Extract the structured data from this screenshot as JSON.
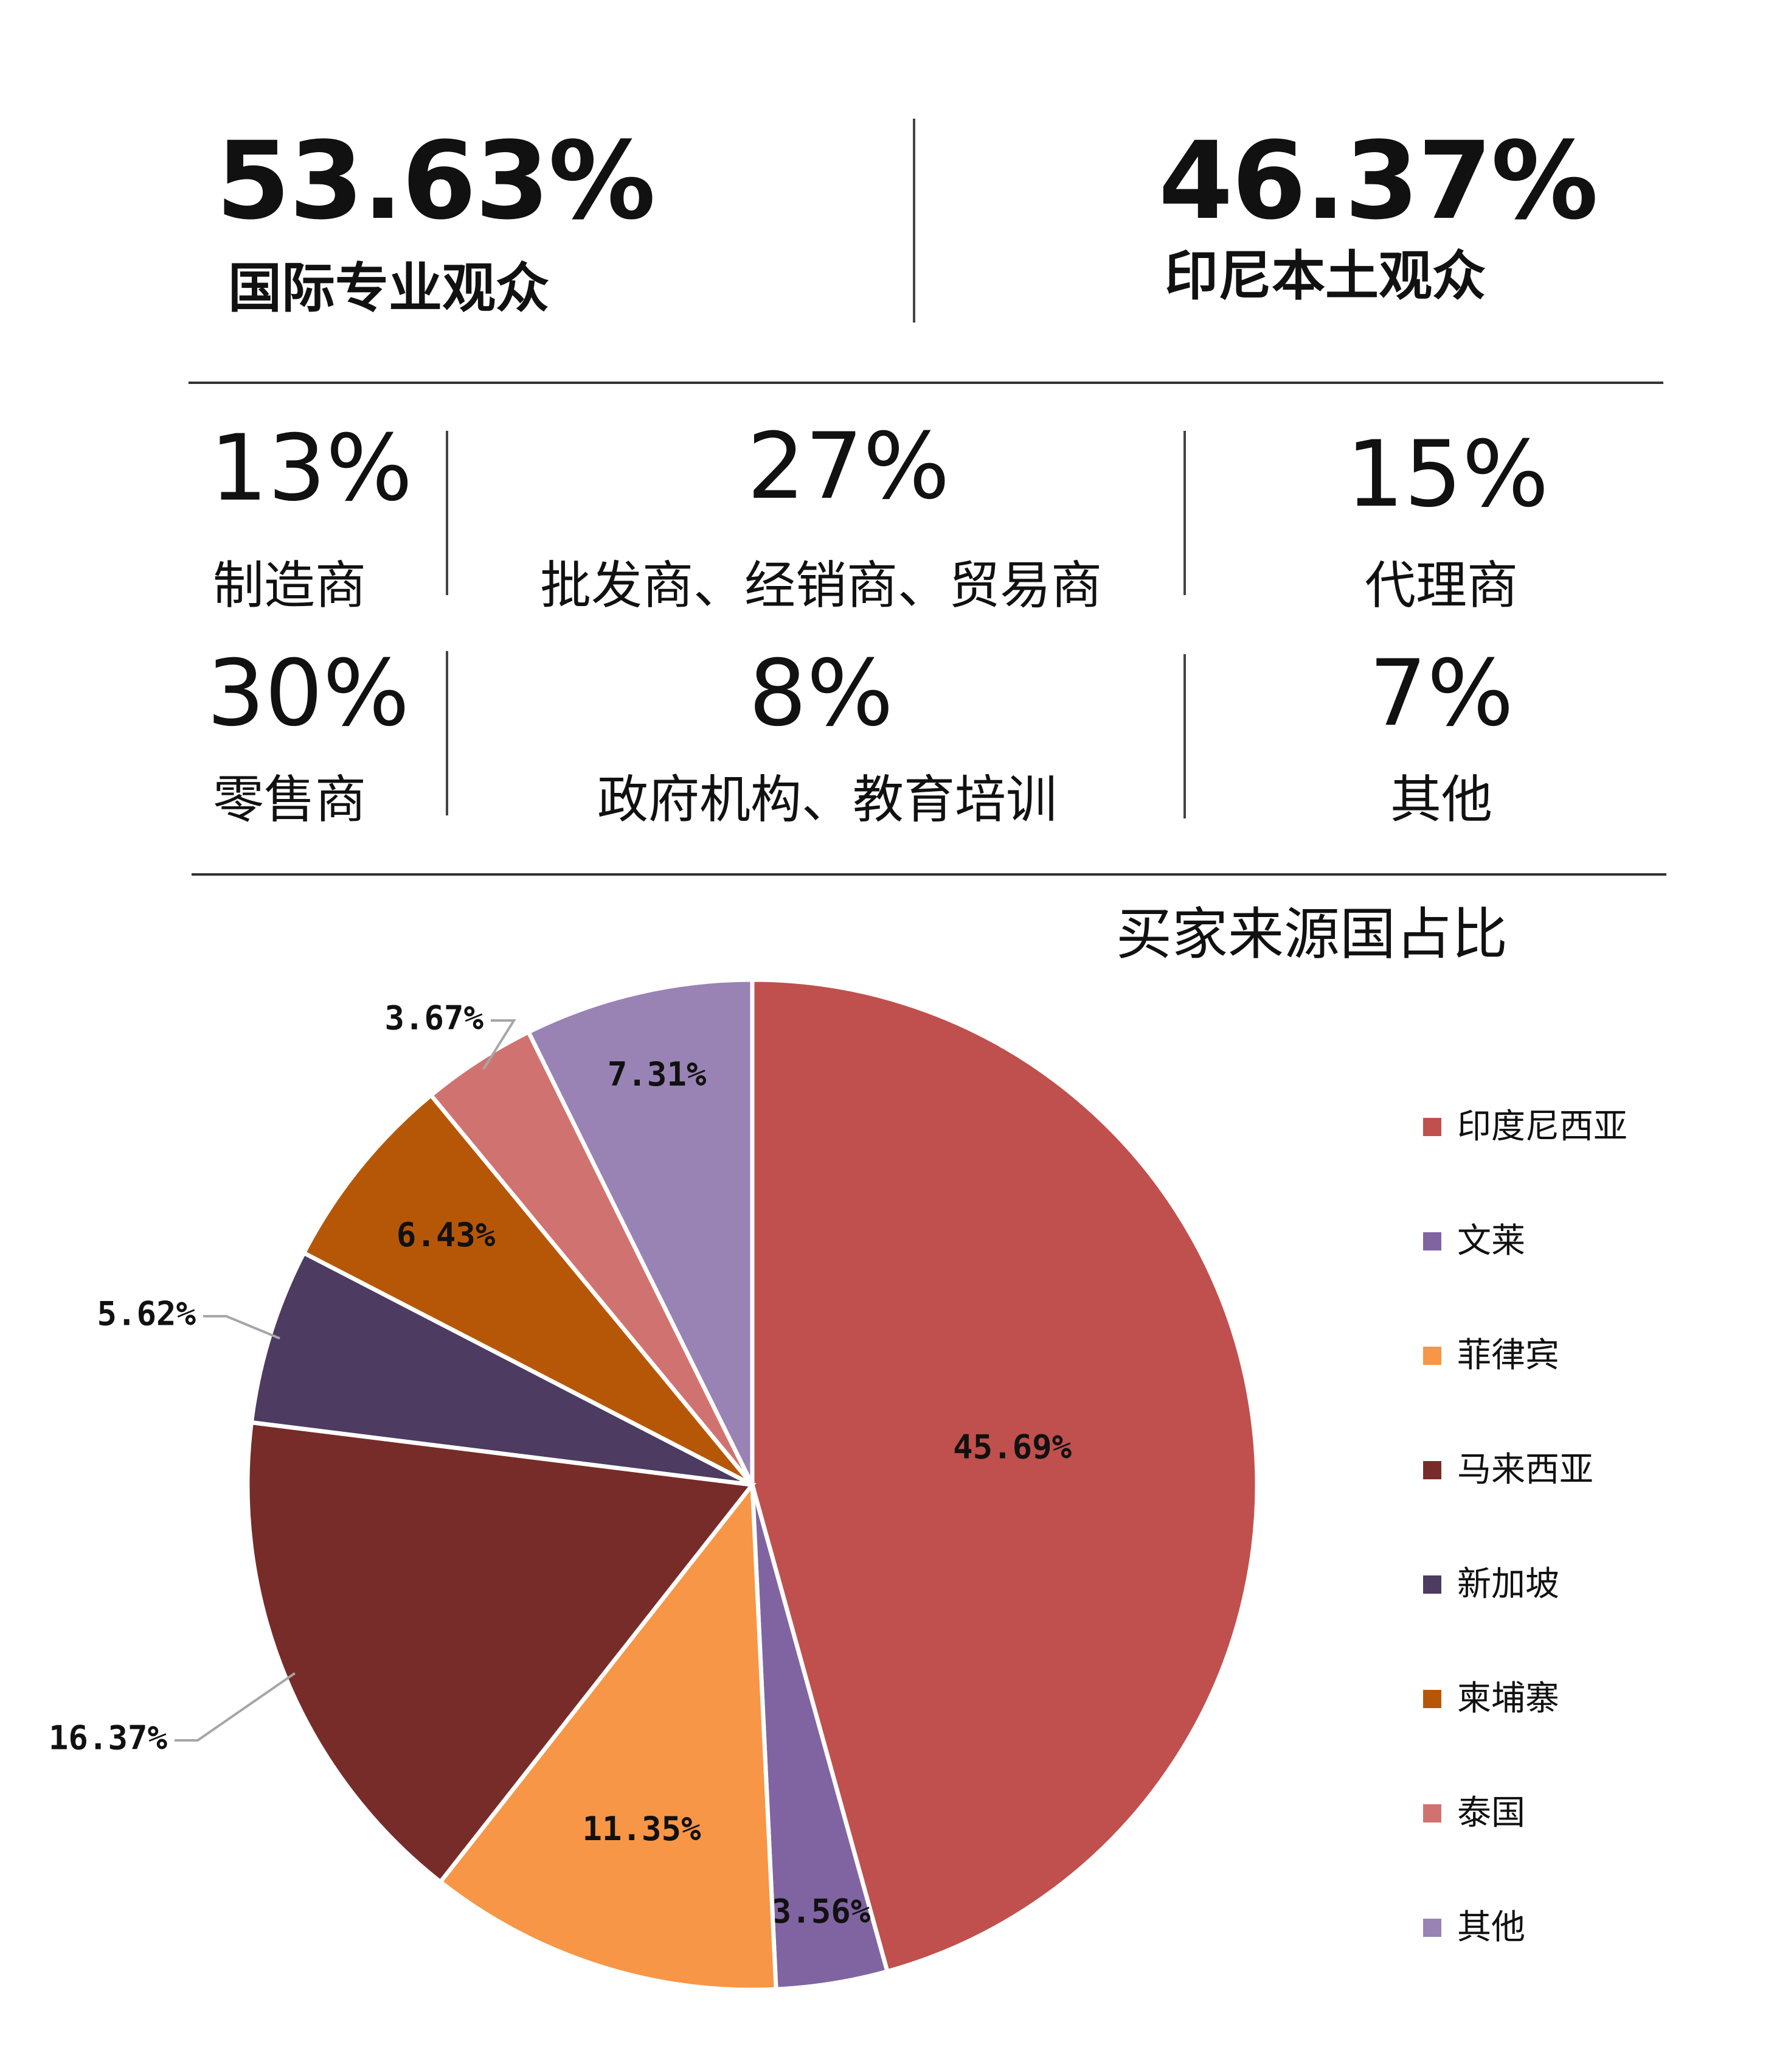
{
  "header": {
    "left": {
      "value": "53.63%",
      "label": "国际专业观众"
    },
    "right": {
      "value": "46.37%",
      "label": "印尼本土观众"
    }
  },
  "categories": [
    {
      "value": "13%",
      "label": "制造商"
    },
    {
      "value": "27%",
      "label": "批发商、经销商、贸易商"
    },
    {
      "value": "15%",
      "label": "代理商"
    },
    {
      "value": "30%",
      "label": "零售商"
    },
    {
      "value": "8%",
      "label": "政府机构、教育培训"
    },
    {
      "value": "7%",
      "label": "其他"
    }
  ],
  "chart_data": {
    "type": "pie",
    "title": "买家来源国占比",
    "legend_position": "right",
    "start_angle_deg": 0,
    "direction": "clockwise",
    "series": [
      {
        "name": "印度尼西亚",
        "value": 45.69,
        "label": "45.69%",
        "color": "#c0504d"
      },
      {
        "name": "文莱",
        "value": 3.56,
        "label": "3.56%",
        "color": "#8064a2"
      },
      {
        "name": "菲律宾",
        "value": 11.35,
        "label": "11.35%",
        "color": "#f79646"
      },
      {
        "name": "马来西亚",
        "value": 16.37,
        "label": "16.37%",
        "color": "#772c2a"
      },
      {
        "name": "新加坡",
        "value": 5.62,
        "label": "5.62%",
        "color": "#4d3b62"
      },
      {
        "name": "柬埔寨",
        "value": 6.43,
        "label": "6.43%",
        "color": "#b65708"
      },
      {
        "name": "泰国",
        "value": 3.67,
        "label": "3.67%",
        "color": "#d07370"
      },
      {
        "name": "其他",
        "value": 7.31,
        "label": "7.31%",
        "color": "#9983b5"
      }
    ]
  }
}
